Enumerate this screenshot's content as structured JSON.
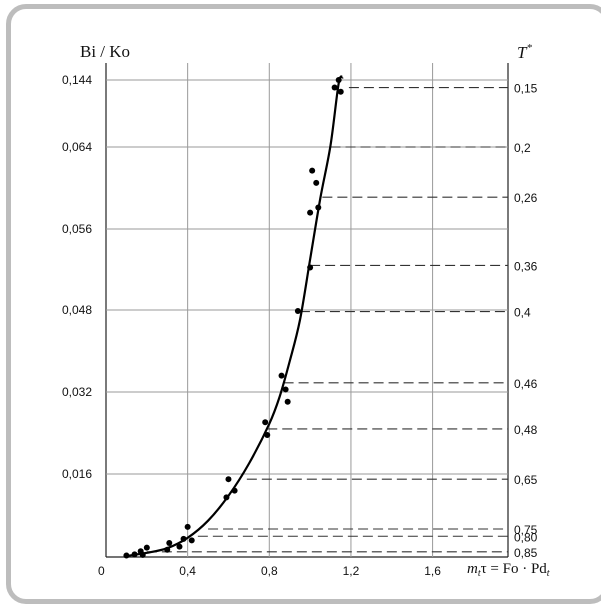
{
  "chart_data": {
    "type": "scatter",
    "title": "",
    "ylabel": "Bi / Ko",
    "right_axis_label_base": "T",
    "right_axis_label_sup": "*",
    "xlabel_prefix": "m",
    "xlabel_sub1": "t",
    "xlabel_mid": "τ = Fo · Pd",
    "xlabel_sub2": "t",
    "x_ticks": [
      "0",
      "0,4",
      "0,8",
      "1,2",
      "1,6"
    ],
    "x_tick_values": [
      0,
      0.4,
      0.8,
      1.2,
      1.6
    ],
    "y_ticks": [
      "0,016",
      "0,032",
      "0,048",
      "0,056",
      "0,064",
      "0,144"
    ],
    "xlim": [
      0,
      2.05
    ],
    "grid": true,
    "points": [
      {
        "x": 0.1,
        "y": 0.0003
      },
      {
        "x": 0.14,
        "y": 0.0005
      },
      {
        "x": 0.17,
        "y": 0.0011
      },
      {
        "x": 0.18,
        "y": 0.0004
      },
      {
        "x": 0.2,
        "y": 0.0018
      },
      {
        "x": 0.3,
        "y": 0.0014
      },
      {
        "x": 0.31,
        "y": 0.0027
      },
      {
        "x": 0.36,
        "y": 0.002
      },
      {
        "x": 0.38,
        "y": 0.0035
      },
      {
        "x": 0.4,
        "y": 0.0058
      },
      {
        "x": 0.42,
        "y": 0.0032
      },
      {
        "x": 0.59,
        "y": 0.0115
      },
      {
        "x": 0.6,
        "y": 0.015
      },
      {
        "x": 0.63,
        "y": 0.0128
      },
      {
        "x": 0.78,
        "y": 0.0261
      },
      {
        "x": 0.79,
        "y": 0.0236
      },
      {
        "x": 0.86,
        "y": 0.0352
      },
      {
        "x": 0.88,
        "y": 0.0325
      },
      {
        "x": 0.89,
        "y": 0.0301
      },
      {
        "x": 0.94,
        "y": 0.0478
      },
      {
        "x": 1.0,
        "y": 0.0522
      },
      {
        "x": 1.0,
        "y": 0.0576
      },
      {
        "x": 1.01,
        "y": 0.0617
      },
      {
        "x": 1.03,
        "y": 0.0605
      },
      {
        "x": 1.04,
        "y": 0.0581
      },
      {
        "x": 1.12,
        "y": 0.135
      },
      {
        "x": 1.14,
        "y": 0.144
      },
      {
        "x": 1.15,
        "y": 0.13
      }
    ],
    "curve": [
      {
        "x": 0.1,
        "y": 0.0002
      },
      {
        "x": 0.2,
        "y": 0.0008
      },
      {
        "x": 0.3,
        "y": 0.0017
      },
      {
        "x": 0.4,
        "y": 0.0037
      },
      {
        "x": 0.5,
        "y": 0.007
      },
      {
        "x": 0.6,
        "y": 0.0118
      },
      {
        "x": 0.7,
        "y": 0.018
      },
      {
        "x": 0.8,
        "y": 0.0258
      },
      {
        "x": 0.85,
        "y": 0.031
      },
      {
        "x": 0.9,
        "y": 0.038
      },
      {
        "x": 0.95,
        "y": 0.046
      },
      {
        "x": 1.0,
        "y": 0.053
      },
      {
        "x": 1.05,
        "y": 0.059
      },
      {
        "x": 1.1,
        "y": 0.066
      },
      {
        "x": 1.14,
        "y": 0.14
      },
      {
        "x": 1.16,
        "y": 0.148
      }
    ],
    "T_levels": [
      {
        "label": "0,15",
        "y": 0.135,
        "x_start": 1.19
      },
      {
        "label": "0,2",
        "y": 0.064,
        "x_start": 1.1
      },
      {
        "label": "0,26",
        "y": 0.0591,
        "x_start": 1.06
      },
      {
        "label": "0,36",
        "y": 0.0524,
        "x_start": 1.0
      },
      {
        "label": "0,4",
        "y": 0.0477,
        "x_start": 0.95
      },
      {
        "label": "0,46",
        "y": 0.0338,
        "x_start": 0.87
      },
      {
        "label": "0,48",
        "y": 0.0248,
        "x_start": 0.79
      },
      {
        "label": "0,65",
        "y": 0.015,
        "x_start": 0.69
      },
      {
        "label": "0,75",
        "y": 0.0054,
        "x_start": 0.5
      },
      {
        "label": "0,80",
        "y": 0.004,
        "x_start": 0.45
      },
      {
        "label": "0,85",
        "y": 0.001,
        "x_start": 0.2
      }
    ]
  }
}
